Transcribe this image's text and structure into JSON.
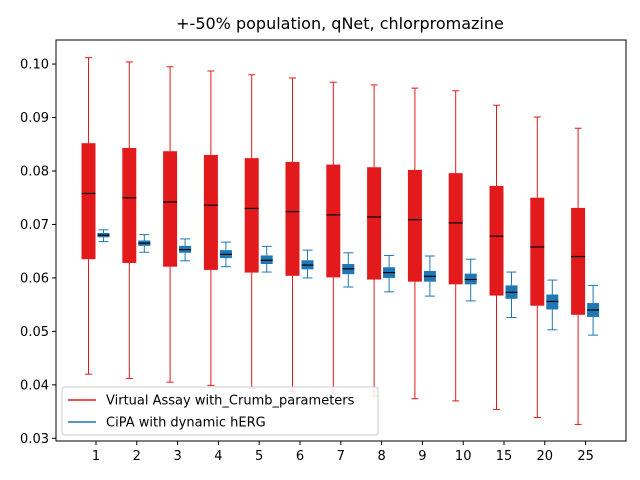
{
  "chart_data": {
    "type": "box",
    "title": "+-50% population, qNet, chlorpromazine",
    "xlabel": "",
    "ylabel": "",
    "categories": [
      "1",
      "2",
      "3",
      "4",
      "5",
      "6",
      "7",
      "8",
      "9",
      "10",
      "15",
      "20",
      "25"
    ],
    "ylim": [
      0.0295,
      0.1045
    ],
    "yticks": [
      "0.03",
      "0.04",
      "0.05",
      "0.06",
      "0.07",
      "0.08",
      "0.09",
      "0.10"
    ],
    "grid": false,
    "legend_position": "lower-left",
    "series": [
      {
        "name": "Virtual Assay with_Crumb_parameters",
        "color": "#e31a1c",
        "boxes": [
          {
            "whislo": 0.042,
            "q1": 0.0635,
            "med": 0.0758,
            "q3": 0.0852,
            "whishi": 0.1012
          },
          {
            "whislo": 0.0412,
            "q1": 0.0628,
            "med": 0.075,
            "q3": 0.0843,
            "whishi": 0.1004
          },
          {
            "whislo": 0.0405,
            "q1": 0.0621,
            "med": 0.0742,
            "q3": 0.0837,
            "whishi": 0.0995
          },
          {
            "whislo": 0.0399,
            "q1": 0.0615,
            "med": 0.0736,
            "q3": 0.083,
            "whishi": 0.0987
          },
          {
            "whislo": 0.0393,
            "q1": 0.061,
            "med": 0.073,
            "q3": 0.0824,
            "whishi": 0.098
          },
          {
            "whislo": 0.0388,
            "q1": 0.0604,
            "med": 0.0724,
            "q3": 0.0817,
            "whishi": 0.0974
          },
          {
            "whislo": 0.0383,
            "q1": 0.0601,
            "med": 0.0718,
            "q3": 0.0812,
            "whishi": 0.0966
          },
          {
            "whislo": 0.0379,
            "q1": 0.0597,
            "med": 0.0714,
            "q3": 0.0807,
            "whishi": 0.0961
          },
          {
            "whislo": 0.0374,
            "q1": 0.0593,
            "med": 0.0709,
            "q3": 0.0802,
            "whishi": 0.0955
          },
          {
            "whislo": 0.037,
            "q1": 0.0588,
            "med": 0.0703,
            "q3": 0.0796,
            "whishi": 0.095
          },
          {
            "whislo": 0.0354,
            "q1": 0.0567,
            "med": 0.0678,
            "q3": 0.0772,
            "whishi": 0.0923
          },
          {
            "whislo": 0.0339,
            "q1": 0.0548,
            "med": 0.0658,
            "q3": 0.075,
            "whishi": 0.0901
          },
          {
            "whislo": 0.0326,
            "q1": 0.0531,
            "med": 0.064,
            "q3": 0.0731,
            "whishi": 0.088
          }
        ]
      },
      {
        "name": "CiPA with dynamic hERG",
        "color": "#1f77b4",
        "boxes": [
          {
            "whislo": 0.0668,
            "q1": 0.0676,
            "med": 0.068,
            "q3": 0.0684,
            "whishi": 0.069
          },
          {
            "whislo": 0.0648,
            "q1": 0.066,
            "med": 0.0665,
            "q3": 0.067,
            "whishi": 0.0681
          },
          {
            "whislo": 0.0632,
            "q1": 0.0647,
            "med": 0.0653,
            "q3": 0.066,
            "whishi": 0.0673
          },
          {
            "whislo": 0.0621,
            "q1": 0.0637,
            "med": 0.0644,
            "q3": 0.0652,
            "whishi": 0.0667
          },
          {
            "whislo": 0.0611,
            "q1": 0.0626,
            "med": 0.0633,
            "q3": 0.0642,
            "whishi": 0.0659
          },
          {
            "whislo": 0.06,
            "q1": 0.0616,
            "med": 0.0624,
            "q3": 0.0633,
            "whishi": 0.0652
          },
          {
            "whislo": 0.0583,
            "q1": 0.0607,
            "med": 0.0617,
            "q3": 0.0626,
            "whishi": 0.0647
          },
          {
            "whislo": 0.0574,
            "q1": 0.06,
            "med": 0.061,
            "q3": 0.062,
            "whishi": 0.0642
          },
          {
            "whislo": 0.0566,
            "q1": 0.0593,
            "med": 0.0603,
            "q3": 0.0613,
            "whishi": 0.0641
          },
          {
            "whislo": 0.0557,
            "q1": 0.0588,
            "med": 0.0597,
            "q3": 0.0608,
            "whishi": 0.0635
          },
          {
            "whislo": 0.0526,
            "q1": 0.0561,
            "med": 0.0573,
            "q3": 0.0586,
            "whishi": 0.0611
          },
          {
            "whislo": 0.0503,
            "q1": 0.0541,
            "med": 0.0556,
            "q3": 0.0569,
            "whishi": 0.0596
          },
          {
            "whislo": 0.0493,
            "q1": 0.0527,
            "med": 0.054,
            "q3": 0.0553,
            "whishi": 0.0586
          }
        ]
      }
    ]
  }
}
